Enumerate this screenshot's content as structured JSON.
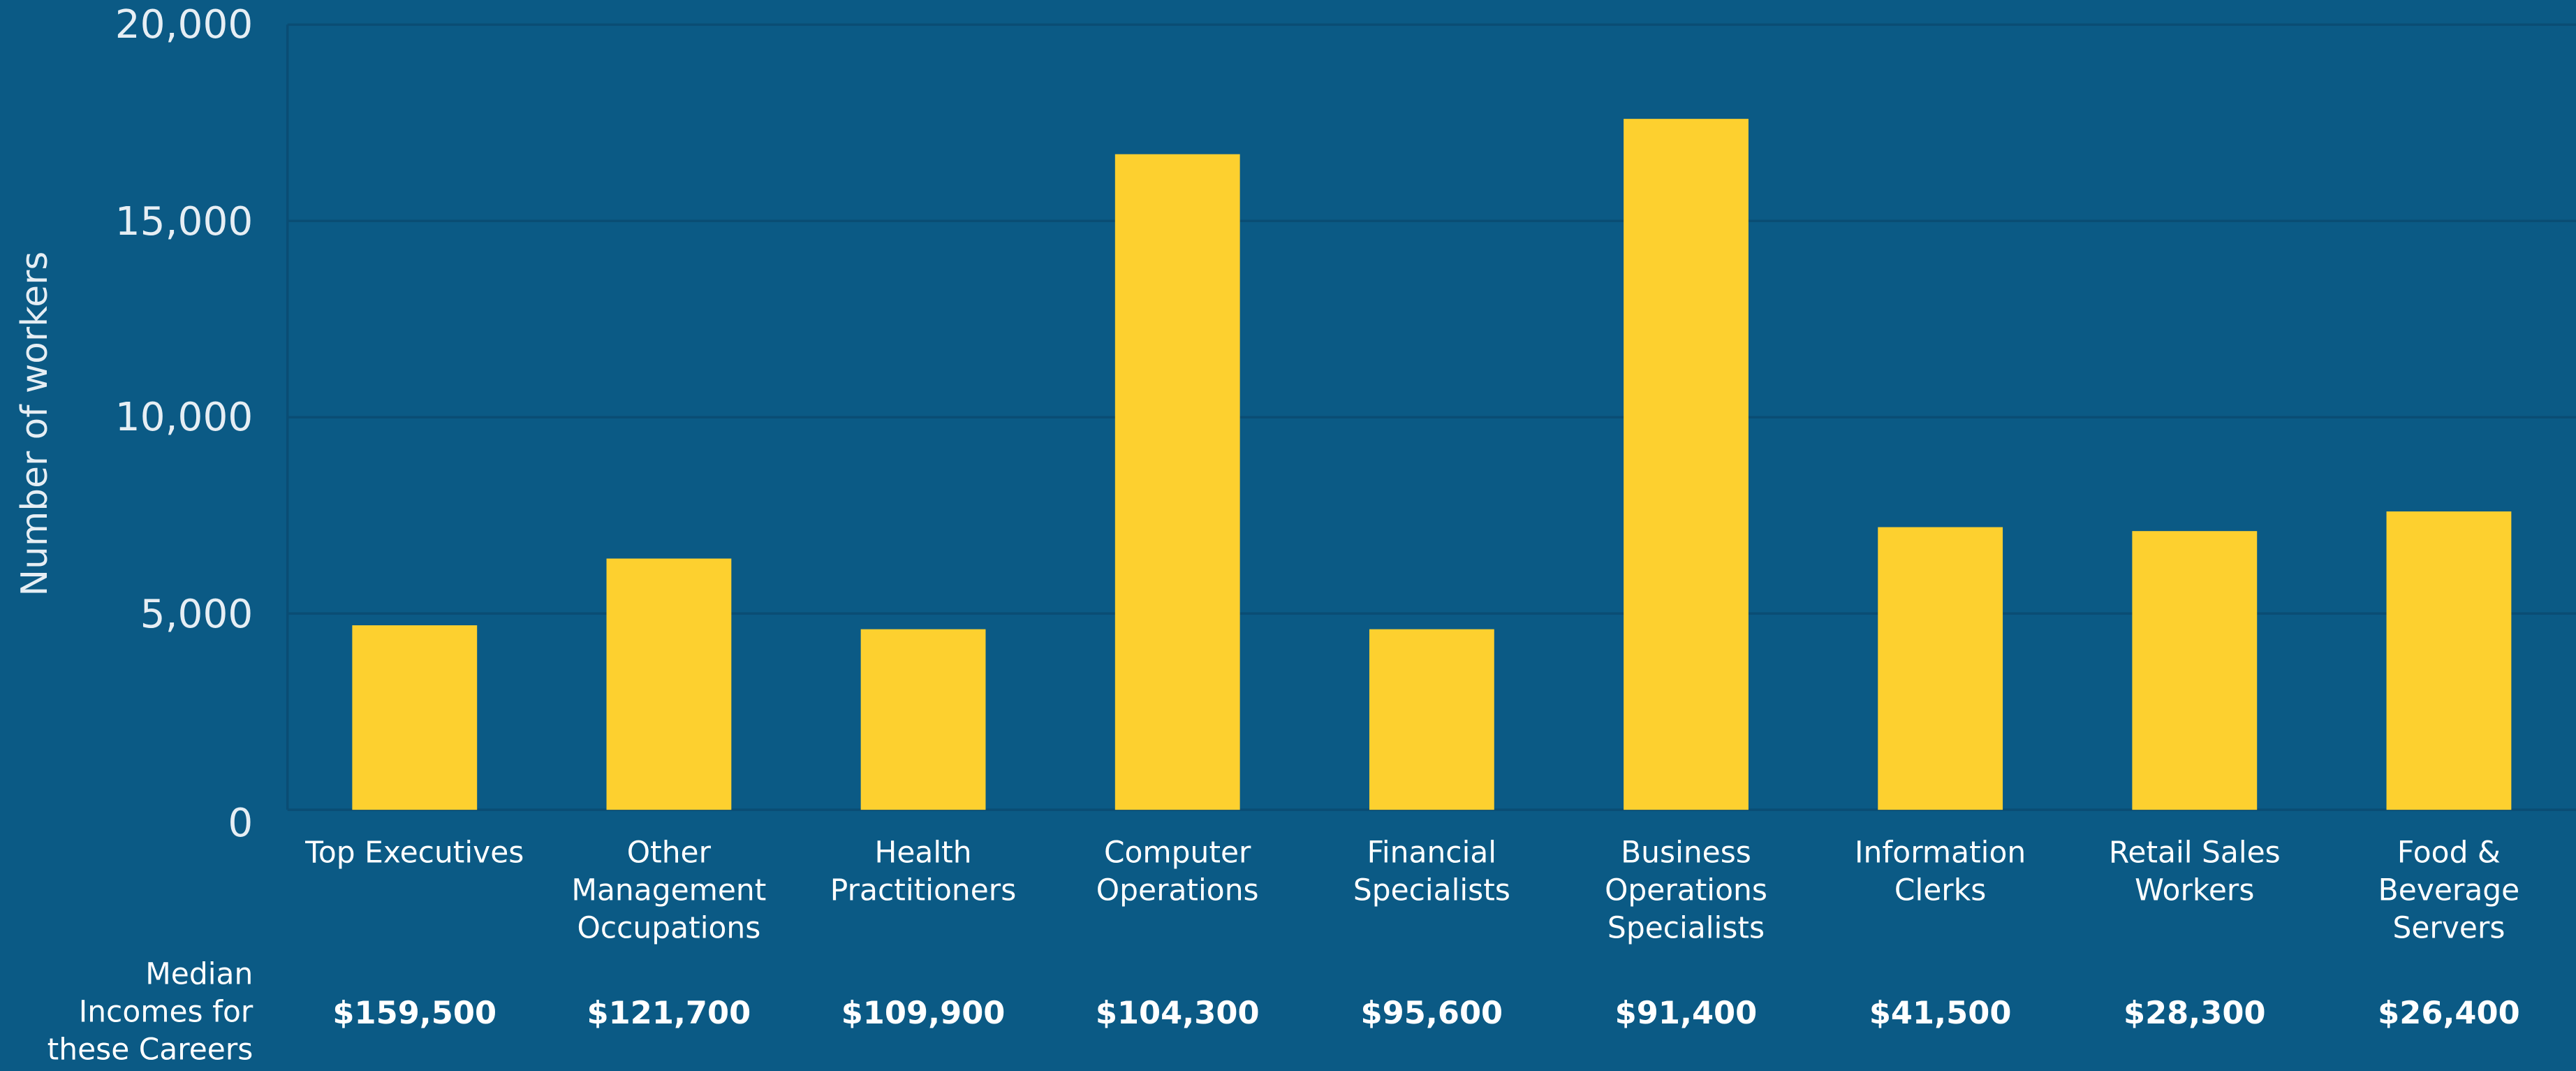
{
  "chart_data": {
    "type": "bar",
    "y_label": "Number of workers",
    "categories": [
      "Top Executives",
      "Other\nManagement\nOccupations",
      "Health\nPractitioners",
      "Computer\nOperations",
      "Financial\nSpecialists",
      "Business\nOperations\nSpecialists",
      "Information\nClerks",
      "Retail Sales\nWorkers",
      "Food &\nBeverage\nServers"
    ],
    "values": [
      4700,
      6400,
      4600,
      16700,
      4600,
      17600,
      7200,
      7100,
      7600
    ],
    "color": "#fdd02f",
    "ylim": [
      0,
      20000
    ],
    "yticks": [
      0,
      {
        "value": 5000,
        "label": "5,000"
      },
      {
        "value": 10000,
        "label": "10,000"
      },
      {
        "value": 15000,
        "label": "15,000"
      },
      {
        "value": 20000,
        "label": "20,000"
      }
    ],
    "grid": true,
    "income_label": "Median\nIncomes for\nthese Careers",
    "incomes": [
      "$159,500",
      "$121,700",
      "$109,900",
      "$104,300",
      "$95,600",
      "$91,400",
      "$41,500",
      "$28,300",
      "$26,400"
    ]
  }
}
